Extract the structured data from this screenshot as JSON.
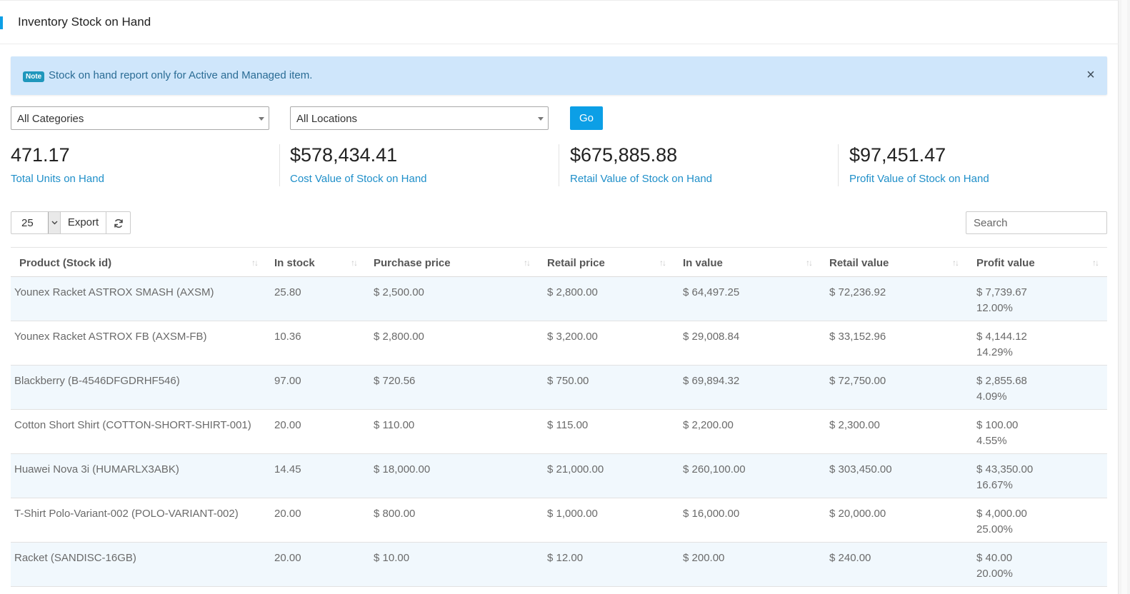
{
  "colors": {
    "accent": "#0c9fe6",
    "link": "#1f8fc9",
    "alert_bg": "#cfe6fb",
    "badge": "#1f97bc",
    "row_alt": "#f1f8fd"
  },
  "header": {
    "title": "Inventory Stock on Hand"
  },
  "alert": {
    "badge": "Note",
    "message": "Stock on hand report only for Active and Managed item.",
    "close": "×"
  },
  "filters": {
    "category": "All Categories",
    "location": "All Locations",
    "go_label": "Go"
  },
  "stats": [
    {
      "value": "471.17",
      "label": "Total Units on Hand"
    },
    {
      "value": "$578,434.41",
      "label": "Cost Value of Stock on Hand"
    },
    {
      "value": "$675,885.88",
      "label": "Retail Value of Stock on Hand"
    },
    {
      "value": "$97,451.47",
      "label": "Profit Value of Stock on Hand"
    }
  ],
  "toolbar": {
    "page_length": "25",
    "export_label": "Export",
    "search_placeholder": "Search",
    "icons": {
      "dropdown": "chevron-down-icon",
      "refresh": "refresh-icon",
      "sort": "sort-icon"
    }
  },
  "table": {
    "columns": [
      "Product (Stock id)",
      "In stock",
      "Purchase price",
      "Retail price",
      "In value",
      "Retail value",
      "Profit value"
    ],
    "rows": [
      {
        "product": "Younex Racket ASTROX SMASH (AXSM)",
        "in_stock": "25.80",
        "purchase": "$ 2,500.00",
        "retail": "$ 2,800.00",
        "in_value": "$ 64,497.25",
        "retail_value": "$ 72,236.92",
        "profit": "$ 7,739.67",
        "profit_pct": "12.00%"
      },
      {
        "product": "Younex Racket ASTROX FB (AXSM-FB)",
        "in_stock": "10.36",
        "purchase": "$ 2,800.00",
        "retail": "$ 3,200.00",
        "in_value": "$ 29,008.84",
        "retail_value": "$ 33,152.96",
        "profit": "$ 4,144.12",
        "profit_pct": "14.29%"
      },
      {
        "product": "Blackberry (B-4546DFGDRHF546)",
        "in_stock": "97.00",
        "purchase": "$ 720.56",
        "retail": "$ 750.00",
        "in_value": "$ 69,894.32",
        "retail_value": "$ 72,750.00",
        "profit": "$ 2,855.68",
        "profit_pct": "4.09%"
      },
      {
        "product": "Cotton Short Shirt (COTTON-SHORT-SHIRT-001)",
        "in_stock": "20.00",
        "purchase": "$ 110.00",
        "retail": "$ 115.00",
        "in_value": "$ 2,200.00",
        "retail_value": "$ 2,300.00",
        "profit": "$ 100.00",
        "profit_pct": "4.55%"
      },
      {
        "product": "Huawei Nova 3i (HUMARLX3ABK)",
        "in_stock": "14.45",
        "purchase": "$ 18,000.00",
        "retail": "$ 21,000.00",
        "in_value": "$ 260,100.00",
        "retail_value": "$ 303,450.00",
        "profit": "$ 43,350.00",
        "profit_pct": "16.67%"
      },
      {
        "product": "T-Shirt Polo-Variant-002 (POLO-VARIANT-002)",
        "in_stock": "20.00",
        "purchase": "$ 800.00",
        "retail": "$ 1,000.00",
        "in_value": "$ 16,000.00",
        "retail_value": "$ 20,000.00",
        "profit": "$ 4,000.00",
        "profit_pct": "25.00%"
      },
      {
        "product": "Racket (SANDISC-16GB)",
        "in_stock": "20.00",
        "purchase": "$ 10.00",
        "retail": "$ 12.00",
        "in_value": "$ 200.00",
        "retail_value": "$ 240.00",
        "profit": "$ 40.00",
        "profit_pct": "20.00%"
      }
    ]
  }
}
